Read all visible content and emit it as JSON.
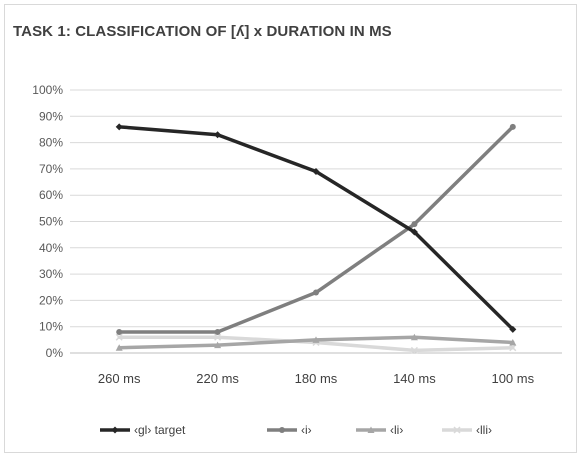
{
  "chart_data": {
    "type": "line",
    "title": "TASK 1: CLASSIFICATION OF [ʎ]  x  DURATION IN MS",
    "xlabel": "",
    "ylabel": "",
    "categories": [
      "260 ms",
      "220 ms",
      "180 ms",
      "140 ms",
      "100 ms"
    ],
    "y_ticks": [
      "0%",
      "10%",
      "20%",
      "30%",
      "40%",
      "50%",
      "60%",
      "70%",
      "80%",
      "90%",
      "100%"
    ],
    "ylim": [
      0,
      100
    ],
    "grid": "horizontal",
    "legend_position": "bottom",
    "series": [
      {
        "name": "‹gl› target",
        "values": [
          86,
          83,
          69,
          46,
          9
        ],
        "color": "#262626",
        "marker": "diamond"
      },
      {
        "name": "‹i›",
        "values": [
          8,
          8,
          23,
          49,
          86
        ],
        "color": "#7f7f7f",
        "marker": "circle"
      },
      {
        "name": "‹li›",
        "values": [
          2,
          3,
          5,
          6,
          4
        ],
        "color": "#a6a6a6",
        "marker": "triangle"
      },
      {
        "name": "‹lli›",
        "values": [
          6,
          6,
          4,
          1,
          2
        ],
        "color": "#d9d9d9",
        "marker": "x"
      }
    ]
  }
}
